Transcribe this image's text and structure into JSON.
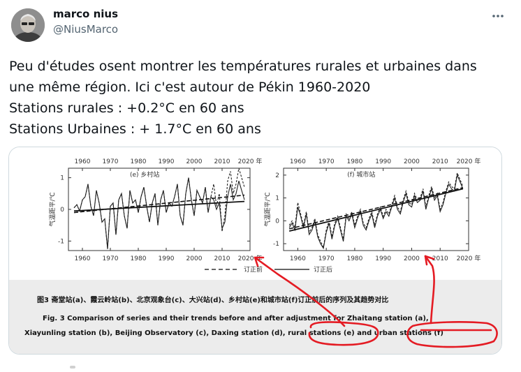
{
  "author": {
    "name": "marco nius",
    "handle": "@NiusMarco"
  },
  "more_icon": "more-horizontal-icon",
  "tweet": {
    "lines": [
      "Peu d'études osent montrer les températures rurales et urbaines dans",
      "une même région. Ici c'est autour de Pékin 1960-2020",
      "Stations rurales : +0.2°C en 60 ans",
      "Stations Urbaines : + 1.7°C en 60 ans"
    ]
  },
  "figure": {
    "annotation_color": "#e41b23",
    "legend": {
      "before_label": "订正前",
      "after_label": "订正后"
    },
    "caption_cn": "图3   斋堂站(a)、霞云岭站(b)、北京观象台(c)、大兴站(d)、乡村站(e)和城市站(f)订正前后的序列及其趋势对比",
    "caption_en_line1": "Fig. 3   Comparison of series and their trends before and after adjustment for Zhaitang station (a),",
    "caption_en_line2": "Xiayunling station (b), Beijing Observatory (c), Daxing station (d), rural stations (e) and urban stations (f)"
  },
  "chart_data": [
    {
      "type": "line",
      "title": "(e) 乡村站",
      "ylabel": "气温距平/℃",
      "xlim": [
        1955,
        2020
      ],
      "ylim": [
        -1.3,
        1.3
      ],
      "x_ticks": [
        "1960",
        "1970",
        "1980",
        "1990",
        "2000",
        "2010",
        "2020 年"
      ],
      "y_ticks": [
        "1",
        "0",
        "-1"
      ],
      "x": [
        1957,
        1958,
        1959,
        1960,
        1961,
        1962,
        1963,
        1964,
        1965,
        1966,
        1967,
        1968,
        1969,
        1970,
        1971,
        1972,
        1973,
        1974,
        1975,
        1976,
        1977,
        1978,
        1979,
        1980,
        1981,
        1982,
        1983,
        1984,
        1985,
        1986,
        1987,
        1988,
        1989,
        1990,
        1991,
        1992,
        1993,
        1994,
        1995,
        1996,
        1997,
        1998,
        1999,
        2000,
        2001,
        2002,
        2003,
        2004,
        2005,
        2006,
        2007,
        2008,
        2009,
        2010,
        2011,
        2012,
        2013,
        2014,
        2015,
        2016,
        2017,
        2018
      ],
      "series": [
        {
          "values": [
            0.05,
            0.15,
            -0.05,
            0.3,
            0.4,
            0.8,
            0.1,
            -0.2,
            0.6,
            0.2,
            -0.4,
            -0.3,
            -1.25,
            0.1,
            0.2,
            -0.8,
            0.3,
            0.5,
            -0.2,
            -0.6,
            0.6,
            0.2,
            0.3,
            -0.1,
            0.4,
            0.7,
            0.1,
            -0.4,
            0.2,
            0.5,
            -0.5,
            0.3,
            0.6,
            -0.1,
            0.2,
            0.1,
            0.4,
            0.8,
            -0.2,
            -0.5,
            0.5,
            1.0,
            0.3,
            -0.2,
            0.6,
            0.4,
            0.2,
            0.7,
            -0.1,
            0.4,
            0.8,
            0.1,
            0.5,
            -0.7,
            -0.2,
            0.9,
            1.2,
            0.5,
            0.8,
            1.3,
            1.0,
            0.7
          ]
        },
        {
          "values": [
            0.05,
            0.15,
            -0.05,
            0.3,
            0.4,
            0.8,
            0.1,
            -0.2,
            0.6,
            0.2,
            -0.4,
            -0.3,
            -1.25,
            0.1,
            0.2,
            -0.8,
            0.3,
            0.5,
            -0.2,
            -0.6,
            0.6,
            0.2,
            0.3,
            -0.1,
            0.4,
            0.7,
            0.1,
            -0.4,
            0.2,
            0.5,
            -0.5,
            0.3,
            0.6,
            -0.1,
            0.2,
            0.1,
            0.4,
            0.8,
            -0.2,
            -0.5,
            0.5,
            1.0,
            0.3,
            -0.2,
            0.6,
            0.4,
            0.2,
            0.7,
            -0.1,
            0.4,
            0.3,
            0.0,
            0.2,
            -0.6,
            -0.4,
            0.4,
            0.8,
            0.3,
            0.5,
            0.9,
            0.6,
            0.3
          ]
        }
      ],
      "trend_before": [
        [
          1957,
          -0.1
        ],
        [
          2018,
          0.45
        ]
      ],
      "trend_after": [
        [
          1957,
          -0.05
        ],
        [
          2018,
          0.25
        ]
      ]
    },
    {
      "type": "line",
      "title": "(f) 城市站",
      "ylabel": "气温距平/℃",
      "xlim": [
        1955,
        2020
      ],
      "ylim": [
        -1.3,
        2.3
      ],
      "x_ticks": [
        "1960",
        "1970",
        "1980",
        "1990",
        "2000",
        "2010",
        "2020 年"
      ],
      "y_ticks": [
        "2",
        "1",
        "0",
        "-1"
      ],
      "x": [
        1957,
        1958,
        1959,
        1960,
        1961,
        1962,
        1963,
        1964,
        1965,
        1966,
        1967,
        1968,
        1969,
        1970,
        1971,
        1972,
        1973,
        1974,
        1975,
        1976,
        1977,
        1978,
        1979,
        1980,
        1981,
        1982,
        1983,
        1984,
        1985,
        1986,
        1987,
        1988,
        1989,
        1990,
        1991,
        1992,
        1993,
        1994,
        1995,
        1996,
        1997,
        1998,
        1999,
        2000,
        2001,
        2002,
        2003,
        2004,
        2005,
        2006,
        2007,
        2008,
        2009,
        2010,
        2011,
        2012,
        2013,
        2014,
        2015,
        2016,
        2017,
        2018
      ],
      "series": [
        {
          "values": [
            -0.2,
            0.0,
            -0.3,
            0.8,
            0.3,
            -0.2,
            0.4,
            -0.5,
            -0.3,
            0.1,
            -0.6,
            -0.9,
            -1.15,
            -0.4,
            0.0,
            -0.7,
            -0.1,
            0.2,
            -0.3,
            -0.8,
            0.3,
            0.1,
            0.4,
            -0.2,
            0.2,
            0.5,
            -0.1,
            -0.3,
            0.1,
            0.4,
            -0.2,
            0.3,
            0.6,
            0.2,
            0.5,
            0.3,
            0.7,
            1.1,
            0.6,
            0.4,
            0.9,
            1.3,
            0.8,
            0.7,
            1.2,
            0.9,
            1.0,
            1.4,
            0.6,
            1.1,
            1.5,
            1.0,
            1.2,
            0.5,
            0.8,
            1.3,
            1.7,
            1.5,
            1.4,
            2.1,
            1.8,
            1.5
          ]
        },
        {
          "values": [
            -0.3,
            -0.1,
            -0.4,
            0.6,
            0.2,
            -0.3,
            0.3,
            -0.6,
            -0.4,
            0.0,
            -0.7,
            -1.0,
            -1.2,
            -0.5,
            -0.1,
            -0.8,
            -0.2,
            0.1,
            -0.4,
            -0.9,
            0.2,
            0.0,
            0.3,
            -0.3,
            0.1,
            0.4,
            -0.2,
            -0.4,
            0.0,
            0.3,
            -0.3,
            0.2,
            0.5,
            0.1,
            0.4,
            0.2,
            0.6,
            1.0,
            0.5,
            0.3,
            0.8,
            1.2,
            0.7,
            0.6,
            1.1,
            0.8,
            0.9,
            1.3,
            0.5,
            1.0,
            1.4,
            0.9,
            1.1,
            0.4,
            0.7,
            1.2,
            1.6,
            1.4,
            1.3,
            2.0,
            1.7,
            1.4
          ]
        }
      ],
      "trend_before": [
        [
          1957,
          -0.35
        ],
        [
          2018,
          1.45
        ]
      ],
      "trend_after": [
        [
          1957,
          -0.45
        ],
        [
          2018,
          1.4
        ]
      ]
    }
  ]
}
